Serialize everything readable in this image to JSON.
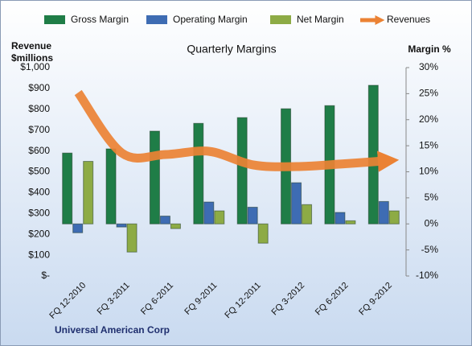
{
  "chart_data": {
    "type": "bar",
    "title": "Quarterly Margins",
    "y_label": "Revenue $millions",
    "y2_label": "Margin %",
    "footer": "Universal American Corp",
    "legend": "top",
    "categories": [
      "FQ 12-2010",
      "FQ 3-2011",
      "FQ 6-2011",
      "FQ 9-2011",
      "FQ 12-2011",
      "FQ 3-2012",
      "FQ 6-2012",
      "FQ 9-2012"
    ],
    "series": [
      {
        "name": "Gross Margin",
        "color": "#1f7d47",
        "axis": "y2",
        "values": [
          13.6,
          14.4,
          17.8,
          19.3,
          20.4,
          22.1,
          22.7,
          26.6
        ]
      },
      {
        "name": "Operating Margin",
        "color": "#3e6cb3",
        "axis": "y2",
        "values": [
          -1.7,
          -0.6,
          1.5,
          4.2,
          3.2,
          7.9,
          2.2,
          4.3
        ]
      },
      {
        "name": "Net Margin",
        "color": "#8dab45",
        "axis": "y2",
        "values": [
          12.0,
          -5.4,
          -0.9,
          2.5,
          -3.7,
          3.7,
          0.6,
          2.5
        ]
      },
      {
        "name": "Revenues",
        "color": "#eb8234",
        "axis": "y",
        "type": "line",
        "values": [
          880,
          590,
          583,
          598,
          533,
          525,
          537,
          552
        ]
      }
    ],
    "ylim": [
      0,
      1000
    ],
    "yticks": [
      {
        "value": 0,
        "label": "$-"
      },
      {
        "value": 100,
        "label": "$100"
      },
      {
        "value": 200,
        "label": "$200"
      },
      {
        "value": 300,
        "label": "$300"
      },
      {
        "value": 400,
        "label": "$400"
      },
      {
        "value": 500,
        "label": "$500"
      },
      {
        "value": 600,
        "label": "$600"
      },
      {
        "value": 700,
        "label": "$700"
      },
      {
        "value": 800,
        "label": "$800"
      },
      {
        "value": 900,
        "label": "$900"
      },
      {
        "value": 1000,
        "label": "$1,000"
      }
    ],
    "y2lim": [
      -10,
      30
    ],
    "y2ticks": [
      {
        "value": -10,
        "label": "-10%"
      },
      {
        "value": -5,
        "label": "-5%"
      },
      {
        "value": 0,
        "label": "0%"
      },
      {
        "value": 5,
        "label": "5%"
      },
      {
        "value": 10,
        "label": "10%"
      },
      {
        "value": 15,
        "label": "15%"
      },
      {
        "value": 20,
        "label": "20%"
      },
      {
        "value": 25,
        "label": "25%"
      },
      {
        "value": 30,
        "label": "30%"
      }
    ]
  }
}
